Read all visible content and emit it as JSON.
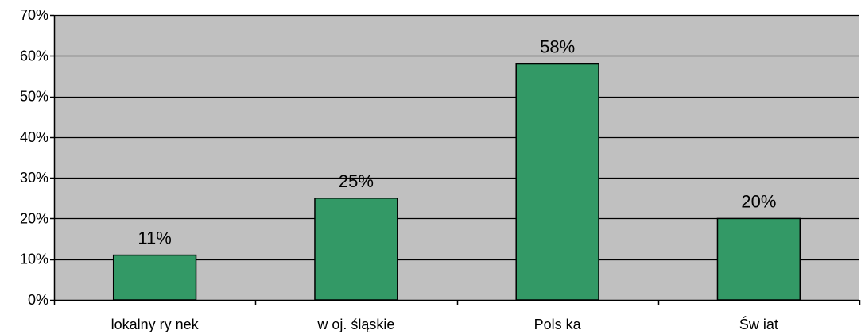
{
  "chart_data": {
    "type": "bar",
    "categories": [
      "lokalny ry nek",
      "w oj. śląskie",
      "Pols ka",
      "Św iat"
    ],
    "values": [
      11,
      25,
      58,
      20
    ],
    "data_labels": [
      "11%",
      "25%",
      "58%",
      "20%"
    ],
    "title": "",
    "xlabel": "",
    "ylabel": "",
    "ylim": [
      0,
      70
    ],
    "yticks": [
      0,
      10,
      20,
      30,
      40,
      50,
      60,
      70
    ],
    "ytick_labels": [
      "0%",
      "10%",
      "20%",
      "30%",
      "40%",
      "50%",
      "60%",
      "70%"
    ],
    "grid": true,
    "legend": false,
    "colors": {
      "plot_background": "#c0c0c0",
      "bar_fill": "#339966",
      "bar_stroke": "#000000",
      "gridline": "#000000"
    }
  }
}
